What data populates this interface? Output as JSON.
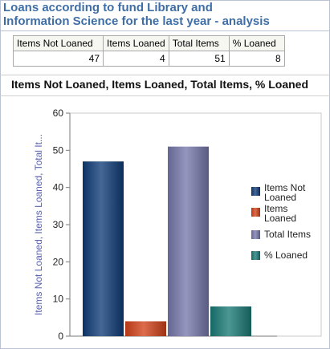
{
  "report": {
    "title_line1": "Loans according to fund Library and",
    "title_line2": "Information Science for the last year - analysis"
  },
  "summary_table": {
    "headers": [
      "Items Not Loaned",
      "Items Loaned",
      "Total Items",
      "% Loaned"
    ],
    "values": [
      "47",
      "4",
      "51",
      "8"
    ]
  },
  "chart_data": {
    "type": "bar",
    "title": "Items Not Loaned, Items Loaned, Total Items, % Loaned",
    "ylabel": "Items Not Loaned, Items Loaned, Total It...",
    "xlabel": "",
    "ylim": [
      0,
      60
    ],
    "yticks": [
      0,
      10,
      20,
      30,
      40,
      50,
      60
    ],
    "grid": false,
    "legend_position": "right",
    "series": [
      {
        "name": "Items Not Loaned",
        "value": 47,
        "color": "#0f3c78"
      },
      {
        "name": "Items Loaned",
        "value": 4,
        "color": "#d2421a"
      },
      {
        "name": "Total Items",
        "value": 51,
        "color": "#7778ac"
      },
      {
        "name": "% Loaned",
        "value": 8,
        "color": "#1a7a76"
      }
    ]
  }
}
